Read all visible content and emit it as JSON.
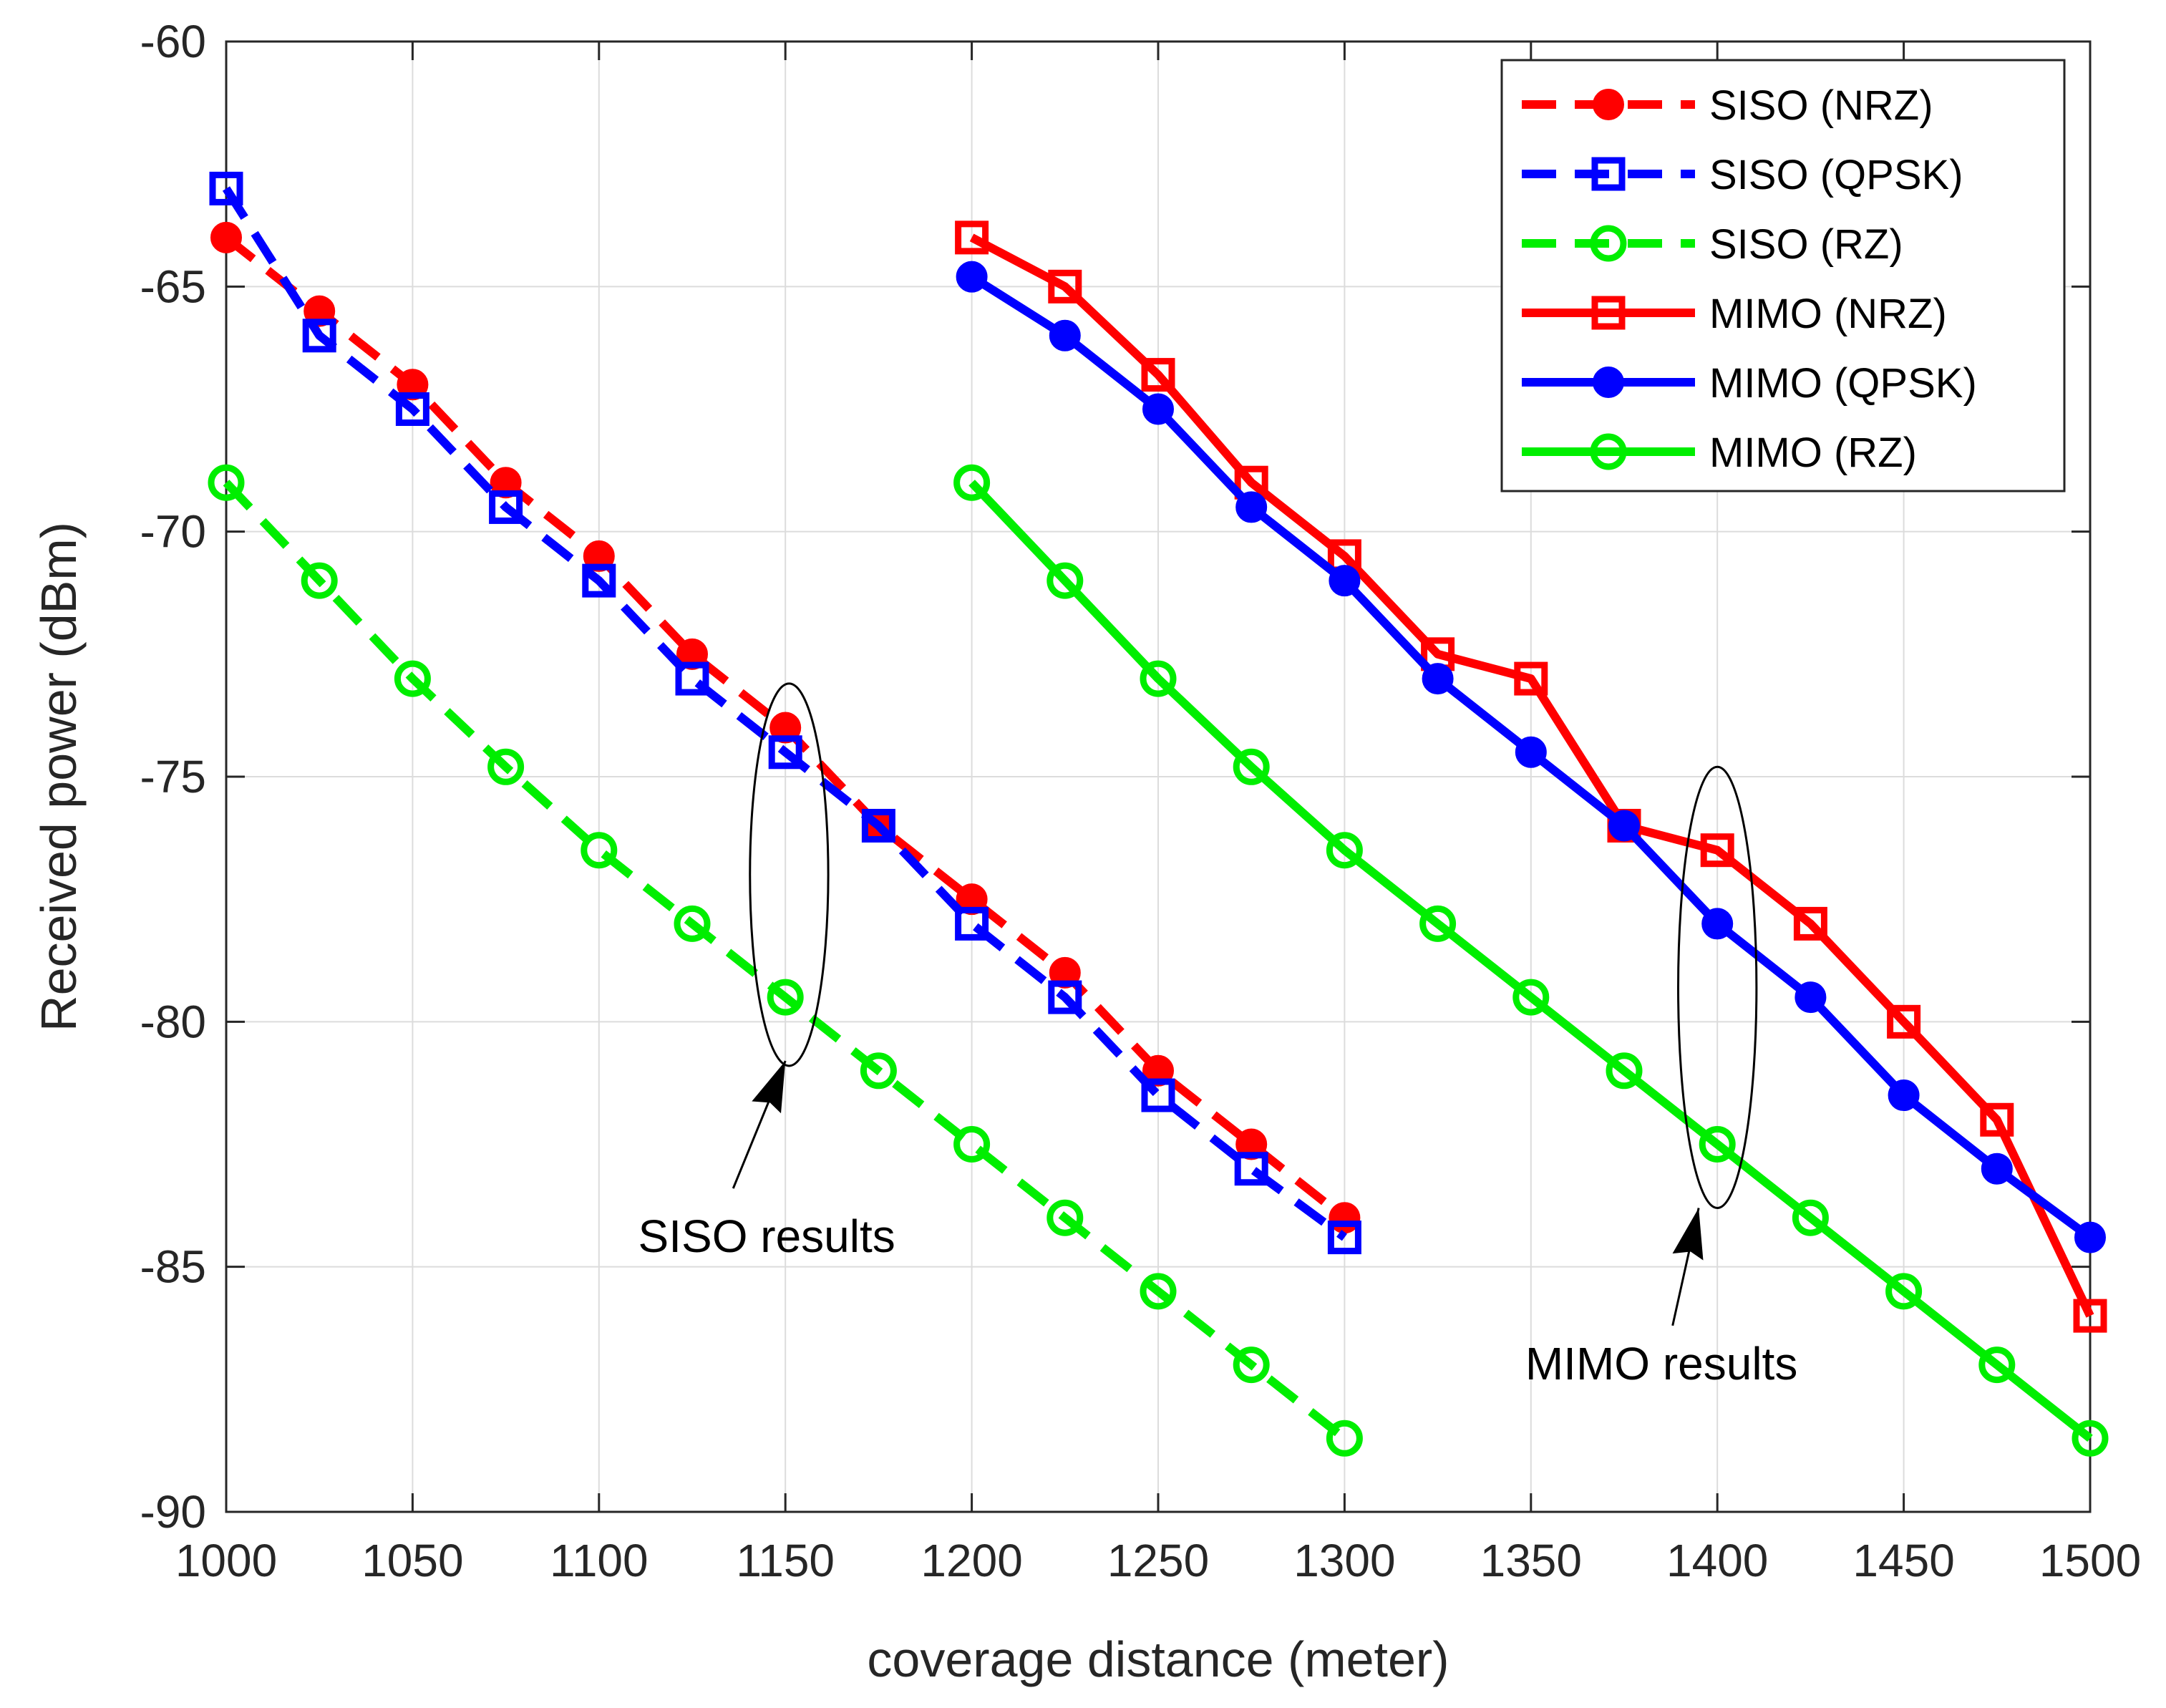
{
  "chart_data": {
    "type": "line",
    "title": "",
    "xlabel": "coverage distance (meter)",
    "ylabel": "Received power (dBm)",
    "xlim": [
      1000,
      1500
    ],
    "ylim": [
      -90,
      -60
    ],
    "xticks": [
      1000,
      1050,
      1100,
      1150,
      1200,
      1250,
      1300,
      1350,
      1400,
      1450,
      1500
    ],
    "yticks": [
      -60,
      -65,
      -70,
      -75,
      -80,
      -85,
      -90
    ],
    "xtick_labels": [
      "1000",
      "1050",
      "1100",
      "1150",
      "1200",
      "1250",
      "1300",
      "1350",
      "1400",
      "1450",
      "1500"
    ],
    "ytick_labels": [
      "-60",
      "-65",
      "-70",
      "-75",
      "-80",
      "-85",
      "-90"
    ],
    "grid": true,
    "legend_position": "top-right",
    "series": [
      {
        "name": "SISO (NRZ)",
        "color": "#ff0000",
        "line": "dashed",
        "marker": "circle-filled",
        "x": [
          1000,
          1025,
          1050,
          1075,
          1100,
          1125,
          1150,
          1175,
          1200,
          1225,
          1250,
          1275,
          1300
        ],
        "y": [
          -64,
          -65.5,
          -67,
          -69,
          -70.5,
          -72.5,
          -74,
          -76,
          -77.5,
          -79,
          -81,
          -82.5,
          -84
        ]
      },
      {
        "name": "SISO (QPSK)",
        "color": "#0000ff",
        "line": "dashed",
        "marker": "square",
        "x": [
          1000,
          1025,
          1050,
          1075,
          1100,
          1125,
          1150,
          1175,
          1200,
          1225,
          1250,
          1275,
          1300
        ],
        "y": [
          -63,
          -66,
          -67.5,
          -69.5,
          -71,
          -73,
          -74.5,
          -76,
          -78,
          -79.5,
          -81.5,
          -83,
          -84.4
        ]
      },
      {
        "name": "SISO (RZ)",
        "color": "#00ee00",
        "line": "dashed",
        "marker": "circle-open",
        "x": [
          1000,
          1025,
          1050,
          1075,
          1100,
          1125,
          1150,
          1175,
          1200,
          1225,
          1250,
          1275,
          1300
        ],
        "y": [
          -69,
          -71,
          -73,
          -74.8,
          -76.5,
          -78,
          -79.5,
          -81,
          -82.5,
          -84,
          -85.5,
          -87,
          -88.5
        ]
      },
      {
        "name": "MIMO (NRZ)",
        "color": "#ff0000",
        "line": "solid",
        "marker": "square",
        "x": [
          1200,
          1225,
          1250,
          1275,
          1300,
          1325,
          1350,
          1375,
          1400,
          1425,
          1450,
          1475,
          1500
        ],
        "y": [
          -64,
          -65,
          -66.8,
          -69,
          -70.5,
          -72.5,
          -73,
          -76,
          -76.5,
          -78,
          -80,
          -82,
          -86
        ]
      },
      {
        "name": "MIMO (QPSK)",
        "color": "#0000ff",
        "line": "solid",
        "marker": "circle-filled",
        "x": [
          1200,
          1225,
          1250,
          1275,
          1300,
          1325,
          1350,
          1375,
          1400,
          1425,
          1450,
          1475,
          1500
        ],
        "y": [
          -64.8,
          -66,
          -67.5,
          -69.5,
          -71,
          -73,
          -74.5,
          -76,
          -78,
          -79.5,
          -81.5,
          -83,
          -84.4
        ]
      },
      {
        "name": "MIMO (RZ)",
        "color": "#00ee00",
        "line": "solid",
        "marker": "circle-open",
        "x": [
          1200,
          1225,
          1250,
          1275,
          1300,
          1325,
          1350,
          1375,
          1400,
          1425,
          1450,
          1475,
          1500
        ],
        "y": [
          -69,
          -71,
          -73,
          -74.8,
          -76.5,
          -78,
          -79.5,
          -81,
          -82.5,
          -84,
          -85.5,
          -87,
          -88.5
        ]
      }
    ],
    "annotations": [
      {
        "text": "SISO results",
        "ellipse_center": [
          1151,
          -77
        ],
        "ellipse_rx": 10.5,
        "ellipse_ry": 3.9,
        "text_at": [
          1145,
          -84.7
        ],
        "arrow_from": [
          1136,
          -83.4
        ],
        "arrow_to": [
          1150,
          -80.8
        ]
      },
      {
        "text": "MIMO results",
        "ellipse_center": [
          1400,
          -79.3
        ],
        "ellipse_rx": 10.5,
        "ellipse_ry": 4.5,
        "text_at": [
          1385,
          -87.3
        ],
        "arrow_from": [
          1388,
          -86.2
        ],
        "arrow_to": [
          1395,
          -83.8
        ]
      }
    ]
  }
}
